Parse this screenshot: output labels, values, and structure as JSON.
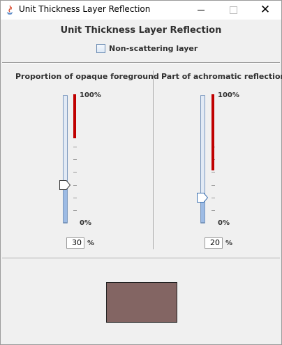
{
  "window": {
    "title": "Unit Thickness Layer Reflection"
  },
  "header": {
    "title": "Unit Thickness Layer Reflection",
    "checkbox_label": "Non-scattering layer",
    "checkbox_checked": false
  },
  "panels": [
    {
      "title": "Proportion of opaque foreground",
      "value": "30",
      "unit": "%",
      "max_label": "100%",
      "min_label": "0%",
      "slider_value": 30,
      "red_bar_fraction": 0.35
    },
    {
      "title": "Part of achromatic reflection",
      "value": "20",
      "unit": "%",
      "max_label": "100%",
      "min_label": "0%",
      "slider_value": 20,
      "red_bar_fraction": 0.6
    }
  ],
  "colors": {
    "swatch": "#836563",
    "indicator": "#c00000"
  }
}
